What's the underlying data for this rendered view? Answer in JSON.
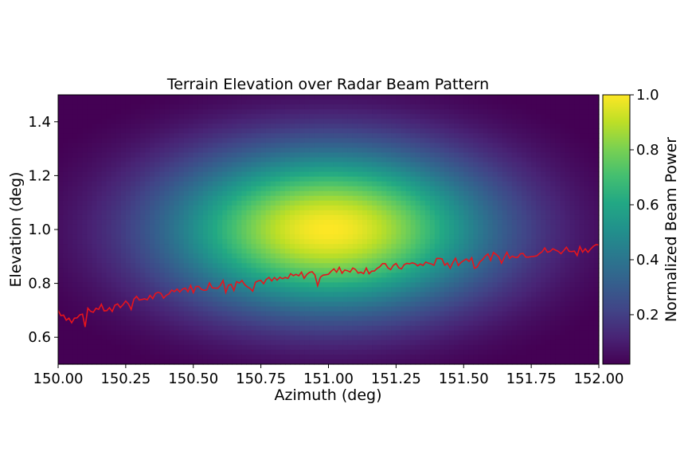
{
  "chart_data": {
    "type": "heatmap",
    "title": "Terrain Elevation over Radar Beam Pattern",
    "xlabel": "Azimuth (deg)",
    "ylabel": "Elevation (deg)",
    "xlim": [
      150.0,
      152.0
    ],
    "ylim": [
      0.5,
      1.5
    ],
    "x_ticks": [
      "150.00",
      "150.25",
      "150.50",
      "150.75",
      "151.00",
      "151.25",
      "151.50",
      "151.75",
      "152.00"
    ],
    "y_ticks": [
      "0.6",
      "0.8",
      "1.0",
      "1.2",
      "1.4"
    ],
    "grid": false,
    "colormap": "viridis",
    "heatmap": {
      "description_function": "gaussian",
      "center_azimuth": 151.0,
      "center_elevation": 1.0,
      "sigma_azimuth": 0.42,
      "sigma_elevation": 0.21,
      "peak": 1.0
    },
    "colorbar": {
      "label": "Normalized Beam Power",
      "range": [
        0.02,
        1.0
      ],
      "ticks": [
        "0.2",
        "0.4",
        "0.6",
        "0.8",
        "1.0"
      ]
    },
    "terrain_line": {
      "color": "#e8141c",
      "x": [
        150.0,
        150.05,
        150.1,
        150.15,
        150.2,
        150.25,
        150.3,
        150.35,
        150.4,
        150.45,
        150.5,
        150.55,
        150.6,
        150.65,
        150.7,
        150.75,
        150.8,
        150.85,
        150.9,
        150.95,
        151.0,
        151.05,
        151.1,
        151.15,
        151.2,
        151.25,
        151.3,
        151.35,
        151.4,
        151.45,
        151.5,
        151.55,
        151.6,
        151.65,
        151.7,
        151.75,
        151.8,
        151.85,
        151.9,
        151.95,
        152.0
      ],
      "y": [
        0.7,
        0.66,
        0.69,
        0.71,
        0.7,
        0.73,
        0.74,
        0.75,
        0.76,
        0.78,
        0.78,
        0.79,
        0.8,
        0.81,
        0.8,
        0.81,
        0.81,
        0.82,
        0.83,
        0.84,
        0.84,
        0.85,
        0.85,
        0.85,
        0.86,
        0.86,
        0.87,
        0.87,
        0.88,
        0.88,
        0.89,
        0.89,
        0.9,
        0.9,
        0.91,
        0.91,
        0.92,
        0.92,
        0.93,
        0.93,
        0.93
      ],
      "noise_amplitude": 0.03
    }
  }
}
